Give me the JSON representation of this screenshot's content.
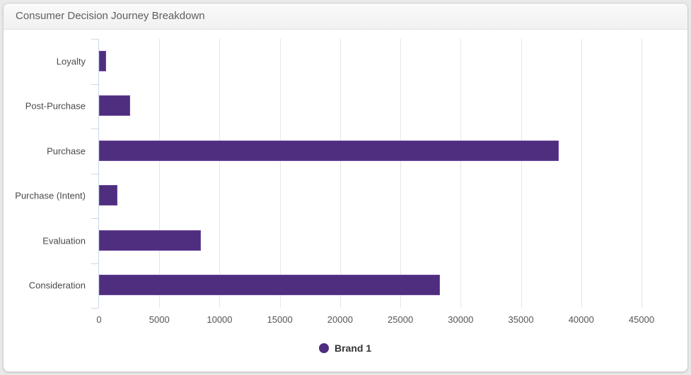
{
  "card": {
    "title": "Consumer Decision Journey Breakdown"
  },
  "colors": {
    "bar": "#4f2d7f",
    "grid": "#e6e6e6",
    "axis": "#ccd6eb"
  },
  "legend": {
    "label": "Brand 1"
  },
  "xticks": [
    "0",
    "5000",
    "10000",
    "15000",
    "20000",
    "25000",
    "30000",
    "35000",
    "40000",
    "45000"
  ],
  "chart_data": {
    "type": "bar",
    "orientation": "horizontal",
    "title": "Consumer Decision Journey Breakdown",
    "categories": [
      "Loyalty",
      "Post-Purchase",
      "Purchase",
      "Purchase (Intent)",
      "Evaluation",
      "Consideration"
    ],
    "series": [
      {
        "name": "Brand 1",
        "values": [
          600,
          2600,
          38150,
          1500,
          8450,
          28300
        ]
      }
    ],
    "xlabel": "",
    "ylabel": "",
    "xlim": [
      0,
      45000
    ],
    "xticks": [
      0,
      5000,
      10000,
      15000,
      20000,
      25000,
      30000,
      35000,
      40000,
      45000
    ],
    "grid": true,
    "legend_position": "bottom"
  }
}
